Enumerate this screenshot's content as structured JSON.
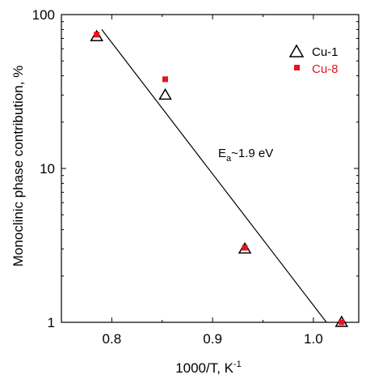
{
  "chart_data": {
    "type": "scatter",
    "title": "",
    "xlabel": "1000/T, K",
    "xlabel_sup": "-1",
    "ylabel": "Monoclinic phase contribution, %",
    "x_scale": "linear",
    "y_scale": "log",
    "xlim": [
      0.75,
      1.045
    ],
    "ylim": [
      1,
      100
    ],
    "x_ticks": [
      0.8,
      0.9,
      1.0
    ],
    "x_tick_labels": [
      "0.8",
      "0.9",
      "1.0"
    ],
    "y_ticks": [
      1,
      10,
      100
    ],
    "y_tick_labels": [
      "1",
      "10",
      "100"
    ],
    "grid": false,
    "legend_position": "top-right",
    "series": [
      {
        "name": "Cu-1",
        "marker": "open-triangle",
        "color": "#000000",
        "x": [
          0.785,
          0.853,
          0.932,
          1.028
        ],
        "y": [
          72,
          30,
          3.0,
          1.0
        ]
      },
      {
        "name": "Cu-8",
        "marker": "filled-square",
        "color": "#e8141e",
        "x": [
          0.785,
          0.853,
          0.932,
          1.028
        ],
        "y": [
          74,
          38,
          3.05,
          1.0
        ]
      }
    ],
    "fit_line": {
      "x": [
        0.79,
        1.013
      ],
      "y": [
        80,
        1.0
      ]
    },
    "annotation": {
      "prefix": "E",
      "subscript": "a",
      "suffix": "~1.9 eV",
      "x": 0.895,
      "y": 11
    }
  }
}
